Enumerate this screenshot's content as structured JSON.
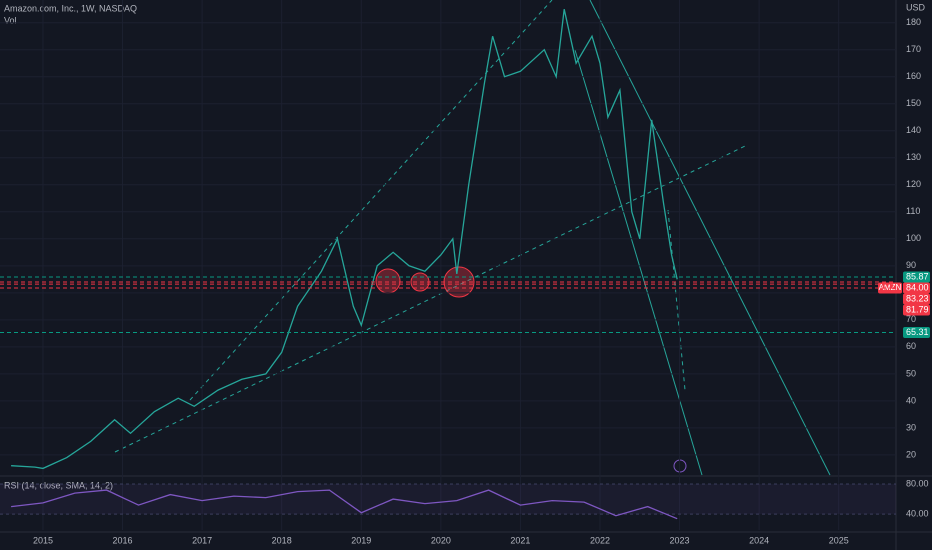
{
  "chart_data": [
    {
      "type": "line",
      "title": "Amazon.com, Inc., 1W, NASDAQ",
      "subtitle": "Vol",
      "y_unit": "USD",
      "x": [
        2014.6,
        2014.9,
        2015.0,
        2015.3,
        2015.6,
        2015.9,
        2016.1,
        2016.4,
        2016.7,
        2016.9,
        2017.2,
        2017.5,
        2017.8,
        2018.0,
        2018.2,
        2018.5,
        2018.7,
        2018.9,
        2019.0,
        2019.2,
        2019.4,
        2019.6,
        2019.8,
        2020.0,
        2020.15,
        2020.2,
        2020.35,
        2020.55,
        2020.65,
        2020.8,
        2021.0,
        2021.3,
        2021.45,
        2021.55,
        2021.7,
        2021.9,
        2022.0,
        2022.1,
        2022.25,
        2022.4,
        2022.5,
        2022.65,
        2022.8,
        2022.9,
        2022.97
      ],
      "series": [
        {
          "name": "AMZN",
          "color": "#26a69a",
          "values": [
            16,
            15.5,
            15,
            19,
            25,
            33,
            28,
            36,
            41,
            38,
            44,
            48,
            50,
            58,
            75,
            88,
            100,
            75,
            68,
            90,
            95,
            90,
            88,
            94,
            100,
            87,
            120,
            158,
            175,
            160,
            162,
            170,
            160,
            185,
            165,
            175,
            165,
            145,
            155,
            110,
            100,
            144,
            113,
            94,
            85
          ]
        }
      ],
      "xlim": [
        2014.46,
        2025.72
      ],
      "xticks": [
        2015,
        2016,
        2017,
        2018,
        2019,
        2020,
        2021,
        2022,
        2023,
        2024,
        2025
      ],
      "ylim": [
        12.2,
        188.4
      ],
      "yticks": [
        20,
        30,
        40,
        50,
        60,
        70,
        80,
        90,
        100,
        110,
        120,
        130,
        140,
        150,
        160,
        170,
        180
      ],
      "levels": [
        {
          "value": 85.87,
          "color": "#089981"
        },
        {
          "value": 84,
          "label": "84.00",
          "tag": "AMZN",
          "color": "#f23645"
        },
        {
          "value": 83.23,
          "color": "#f23645"
        },
        {
          "value": 81.79,
          "color": "#f23645"
        },
        {
          "value": 65.31,
          "color": "#089981"
        }
      ]
    },
    {
      "type": "line",
      "title": "RSI (14, close, SMA, 14, 2)",
      "x": [
        2014.6,
        2015.0,
        2015.4,
        2015.8,
        2016.2,
        2016.6,
        2017.0,
        2017.4,
        2017.8,
        2018.2,
        2018.6,
        2019.0,
        2019.4,
        2019.8,
        2020.2,
        2020.6,
        2021.0,
        2021.4,
        2021.8,
        2022.2,
        2022.6,
        2022.97
      ],
      "series": [
        {
          "name": "RSI",
          "color": "#7e57c2",
          "values": [
            50,
            55,
            68,
            72,
            52,
            66,
            58,
            64,
            62,
            70,
            72,
            42,
            60,
            54,
            58,
            72,
            52,
            58,
            56,
            38,
            50,
            34
          ]
        }
      ],
      "ylim": [
        19,
        88
      ],
      "yticks": [
        {
          "value": 40,
          "label": "40.00"
        },
        {
          "value": 80,
          "label": "80.00"
        }
      ]
    }
  ]
}
